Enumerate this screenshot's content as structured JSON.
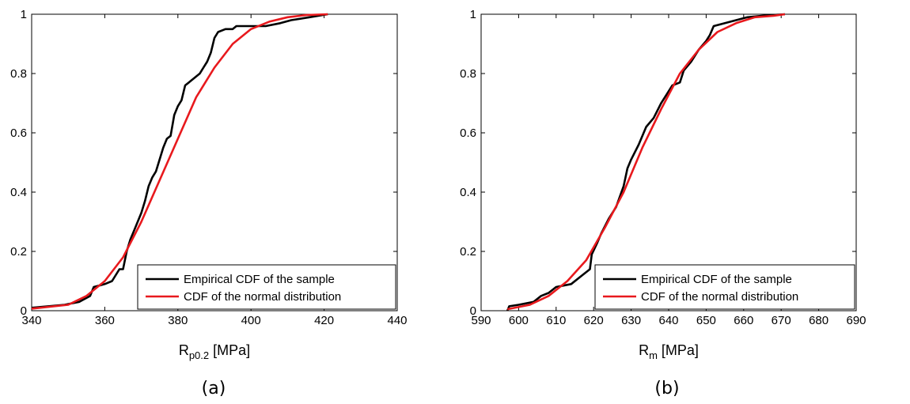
{
  "chart_data": [
    {
      "type": "line",
      "panel_label": "(a)",
      "xlabel_main": "R",
      "xlabel_sub": "p0.2",
      "xlabel_unit": " [MPa]",
      "xlim": [
        340,
        440
      ],
      "ylim": [
        0,
        1
      ],
      "xticks": [
        "340",
        "360",
        "380",
        "400",
        "420",
        "440"
      ],
      "yticks": [
        "0",
        "0.2",
        "0.4",
        "0.6",
        "0.8",
        "1"
      ],
      "grid": false,
      "legend_position": "bottom-right",
      "series": [
        {
          "name": "Empirical CDF of the sample",
          "color": "#000000",
          "x": [
            340,
            349,
            353,
            356,
            357,
            360,
            362,
            364,
            365,
            366,
            367,
            368,
            370,
            371,
            372,
            373,
            374,
            375,
            376,
            377,
            378,
            379,
            380,
            381,
            382,
            383,
            384,
            386,
            387,
            388,
            389,
            390,
            391,
            393,
            395,
            396,
            400,
            404,
            408,
            411,
            416,
            421
          ],
          "y": [
            0.01,
            0.02,
            0.03,
            0.05,
            0.08,
            0.09,
            0.1,
            0.14,
            0.14,
            0.2,
            0.24,
            0.27,
            0.33,
            0.37,
            0.42,
            0.45,
            0.47,
            0.51,
            0.55,
            0.58,
            0.59,
            0.66,
            0.69,
            0.71,
            0.76,
            0.77,
            0.78,
            0.8,
            0.82,
            0.84,
            0.87,
            0.92,
            0.94,
            0.95,
            0.95,
            0.96,
            0.96,
            0.96,
            0.97,
            0.98,
            0.99,
            1.0
          ]
        },
        {
          "name": "CDF of the normal distribution",
          "color": "#e8191d",
          "x": [
            340,
            350,
            355,
            360,
            365,
            370,
            375,
            380,
            385,
            390,
            395,
            400,
            405,
            410,
            415,
            421
          ],
          "y": [
            0.007,
            0.02,
            0.05,
            0.1,
            0.18,
            0.3,
            0.44,
            0.58,
            0.72,
            0.82,
            0.9,
            0.95,
            0.975,
            0.99,
            0.997,
            1.0
          ]
        }
      ]
    },
    {
      "type": "line",
      "panel_label": "(b)",
      "xlabel_main": "R",
      "xlabel_sub": "m",
      "xlabel_unit": " [MPa]",
      "xlim": [
        590,
        690
      ],
      "ylim": [
        0,
        1
      ],
      "xticks": [
        "590",
        "600",
        "610",
        "620",
        "630",
        "640",
        "650",
        "660",
        "670",
        "680",
        "690"
      ],
      "yticks": [
        "0",
        "0.2",
        "0.4",
        "0.6",
        "0.8",
        "1"
      ],
      "grid": false,
      "legend_position": "bottom-right",
      "series": [
        {
          "name": "Empirical CDF of the sample",
          "color": "#000000",
          "x": [
            597,
            597.5,
            600,
            604,
            606,
            608,
            610,
            614,
            617,
            619,
            619.5,
            621,
            622,
            624,
            626,
            628,
            629,
            630,
            632,
            634,
            636,
            638,
            640,
            641,
            643,
            644,
            646,
            648,
            650,
            651,
            652,
            655,
            658,
            661,
            665,
            671
          ],
          "y": [
            0.0,
            0.015,
            0.02,
            0.03,
            0.05,
            0.06,
            0.08,
            0.09,
            0.12,
            0.14,
            0.19,
            0.23,
            0.26,
            0.31,
            0.35,
            0.42,
            0.48,
            0.51,
            0.56,
            0.62,
            0.65,
            0.7,
            0.74,
            0.76,
            0.77,
            0.81,
            0.84,
            0.88,
            0.91,
            0.93,
            0.96,
            0.97,
            0.98,
            0.99,
            0.995,
            1.0
          ]
        },
        {
          "name": "CDF of the normal distribution",
          "color": "#e8191d",
          "x": [
            597,
            603,
            608,
            613,
            618,
            623,
            628,
            633,
            638,
            643,
            648,
            653,
            658,
            663,
            668,
            671
          ],
          "y": [
            0.005,
            0.02,
            0.05,
            0.1,
            0.17,
            0.28,
            0.4,
            0.55,
            0.68,
            0.8,
            0.88,
            0.94,
            0.97,
            0.99,
            0.995,
            1.0
          ]
        }
      ]
    }
  ]
}
